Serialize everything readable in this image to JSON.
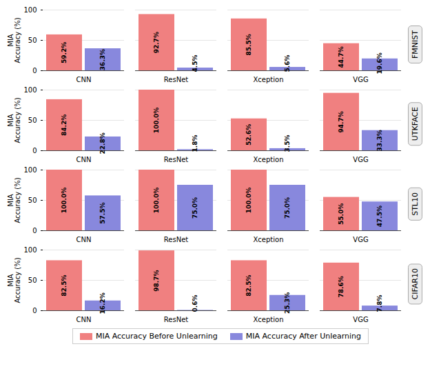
{
  "chart_data": [
    {
      "type": "bar",
      "title": "FMNIST",
      "categories": [
        "CNN",
        "ResNet",
        "Xception",
        "VGG"
      ],
      "series": [
        {
          "name": "MIA Accuracy Before Unlearning",
          "color": "#F08080",
          "values": [
            59.2,
            92.7,
            85.5,
            44.7
          ],
          "value_labels": [
            "59.2%",
            "92.7%",
            "85.5%",
            "44.7%"
          ]
        },
        {
          "name": "MIA Accuracy After Unlearning",
          "color": "#8888dd",
          "values": [
            36.3,
            4.5,
            5.6,
            19.6
          ],
          "value_labels": [
            "36.3%",
            "4.5%",
            "5.6%",
            "19.6%"
          ]
        }
      ],
      "ylabel": "MIA\nAccuracy (%)",
      "ylim": [
        0,
        100
      ],
      "yticks": [
        0,
        50,
        100
      ],
      "grid": true,
      "data_labels": true
    },
    {
      "type": "bar",
      "title": "UTKFACE",
      "categories": [
        "CNN",
        "ResNet",
        "Xception",
        "VGG"
      ],
      "series": [
        {
          "name": "MIA Accuracy Before Unlearning",
          "color": "#F08080",
          "values": [
            84.2,
            100.0,
            52.6,
            94.7
          ],
          "value_labels": [
            "84.2%",
            "100.0%",
            "52.6%",
            "94.7%"
          ]
        },
        {
          "name": "MIA Accuracy After Unlearning",
          "color": "#8888dd",
          "values": [
            22.8,
            1.8,
            3.5,
            33.3
          ],
          "value_labels": [
            "22.8%",
            "1.8%",
            "3.5%",
            "33.3%"
          ]
        }
      ],
      "ylabel": "MIA\nAccuracy (%)",
      "ylim": [
        0,
        100
      ],
      "yticks": [
        0,
        50,
        100
      ],
      "grid": true,
      "data_labels": true
    },
    {
      "type": "bar",
      "title": "STL10",
      "categories": [
        "CNN",
        "ResNet",
        "Xception",
        "VGG"
      ],
      "series": [
        {
          "name": "MIA Accuracy Before Unlearning",
          "color": "#F08080",
          "values": [
            100.0,
            100.0,
            100.0,
            55.0
          ],
          "value_labels": [
            "100.0%",
            "100.0%",
            "100.0%",
            "55.0%"
          ]
        },
        {
          "name": "MIA Accuracy After Unlearning",
          "color": "#8888dd",
          "values": [
            57.5,
            75.0,
            75.0,
            47.5
          ],
          "value_labels": [
            "57.5%",
            "75.0%",
            "75.0%",
            "47.5%"
          ]
        }
      ],
      "ylabel": "MIA\nAccuracy (%)",
      "ylim": [
        0,
        100
      ],
      "yticks": [
        0,
        50,
        100
      ],
      "grid": true,
      "data_labels": true
    },
    {
      "type": "bar",
      "title": "CIFAR10",
      "categories": [
        "CNN",
        "ResNet",
        "Xception",
        "VGG"
      ],
      "series": [
        {
          "name": "MIA Accuracy Before Unlearning",
          "color": "#F08080",
          "values": [
            82.5,
            98.7,
            82.5,
            78.6
          ],
          "value_labels": [
            "82.5%",
            "98.7%",
            "82.5%",
            "78.6%"
          ]
        },
        {
          "name": "MIA Accuracy After Unlearning",
          "color": "#8888dd",
          "values": [
            16.2,
            0.6,
            25.3,
            7.8
          ],
          "value_labels": [
            "16.2%",
            "0.6%",
            "25.3%",
            "7.8%"
          ]
        }
      ],
      "ylabel": "MIA\nAccuracy (%)",
      "ylim": [
        0,
        100
      ],
      "yticks": [
        0,
        50,
        100
      ],
      "grid": true,
      "data_labels": true,
      "legend": "bottom"
    }
  ]
}
